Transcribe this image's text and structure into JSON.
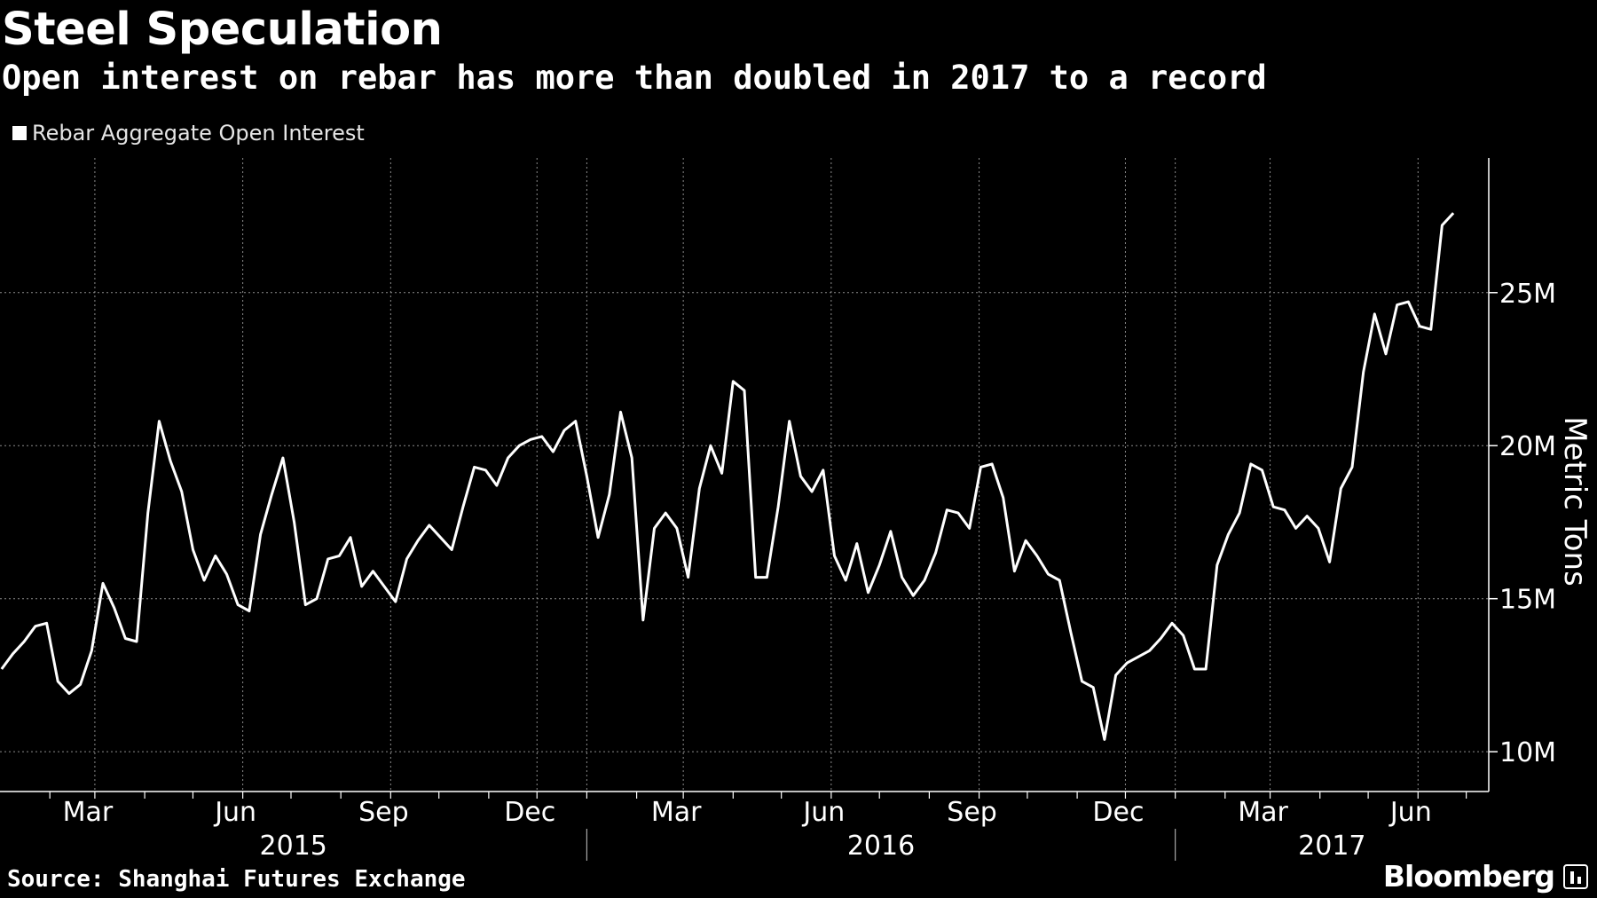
{
  "header": {
    "title": "Steel Speculation",
    "subtitle": "Open interest on rebar has more than doubled in 2017 to a record"
  },
  "legend": {
    "label": "Rebar Aggregate Open Interest"
  },
  "footer": {
    "source": "Source: Shanghai Futures Exchange",
    "brand": "Bloomberg"
  },
  "colors": {
    "background": "#000000",
    "line": "#ffffff",
    "grid": "#8c8c8c",
    "text": "#ffffff"
  },
  "chart_data": {
    "type": "line",
    "title": "Steel Speculation",
    "subtitle": "Open interest on rebar has more than doubled in 2017 to a record",
    "ylabel": "Metric Tons",
    "xlabel": "",
    "ylim": [
      8.7,
      29.4
    ],
    "y_ticks": [
      {
        "value": 10,
        "label": "10M"
      },
      {
        "value": 15,
        "label": "15M"
      },
      {
        "value": 20,
        "label": "20M"
      },
      {
        "value": 25,
        "label": "25M"
      }
    ],
    "x_range": [
      "2015-01-01",
      "2017-07-15"
    ],
    "month_ticks": [
      {
        "date": "2015-03-01",
        "label": "Mar"
      },
      {
        "date": "2015-06-01",
        "label": "Jun"
      },
      {
        "date": "2015-09-01",
        "label": "Sep"
      },
      {
        "date": "2015-12-01",
        "label": "Dec"
      },
      {
        "date": "2016-03-01",
        "label": "Mar"
      },
      {
        "date": "2016-06-01",
        "label": "Jun"
      },
      {
        "date": "2016-09-01",
        "label": "Sep"
      },
      {
        "date": "2016-12-01",
        "label": "Dec"
      },
      {
        "date": "2017-03-01",
        "label": "Mar"
      },
      {
        "date": "2017-06-01",
        "label": "Jun"
      }
    ],
    "year_labels": [
      {
        "label": "2015",
        "start": "2015-01-01",
        "end": "2016-01-01"
      },
      {
        "label": "2016",
        "start": "2016-01-01",
        "end": "2017-01-01"
      },
      {
        "label": "2017",
        "start": "2017-01-01",
        "end": "2017-07-15"
      }
    ],
    "grid": true,
    "legend_position": "top-left",
    "series": [
      {
        "name": "Rebar Aggregate Open Interest",
        "points": [
          [
            "2015-01-02",
            12.7
          ],
          [
            "2015-01-09",
            13.2
          ],
          [
            "2015-01-16",
            13.6
          ],
          [
            "2015-01-23",
            14.1
          ],
          [
            "2015-01-30",
            14.2
          ],
          [
            "2015-02-06",
            12.3
          ],
          [
            "2015-02-13",
            11.9
          ],
          [
            "2015-02-20",
            12.2
          ],
          [
            "2015-02-27",
            13.3
          ],
          [
            "2015-03-06",
            15.5
          ],
          [
            "2015-03-13",
            14.7
          ],
          [
            "2015-03-20",
            13.7
          ],
          [
            "2015-03-27",
            13.6
          ],
          [
            "2015-04-03",
            17.8
          ],
          [
            "2015-04-10",
            20.8
          ],
          [
            "2015-04-17",
            19.5
          ],
          [
            "2015-04-24",
            18.5
          ],
          [
            "2015-05-01",
            16.6
          ],
          [
            "2015-05-08",
            15.6
          ],
          [
            "2015-05-15",
            16.4
          ],
          [
            "2015-05-22",
            15.8
          ],
          [
            "2015-05-29",
            14.8
          ],
          [
            "2015-06-05",
            14.6
          ],
          [
            "2015-06-12",
            17.1
          ],
          [
            "2015-06-19",
            18.4
          ],
          [
            "2015-06-26",
            19.6
          ],
          [
            "2015-07-03",
            17.5
          ],
          [
            "2015-07-10",
            14.8
          ],
          [
            "2015-07-17",
            15.0
          ],
          [
            "2015-07-24",
            16.3
          ],
          [
            "2015-07-31",
            16.4
          ],
          [
            "2015-08-07",
            17.0
          ],
          [
            "2015-08-14",
            15.4
          ],
          [
            "2015-08-21",
            15.9
          ],
          [
            "2015-08-28",
            15.4
          ],
          [
            "2015-09-04",
            14.9
          ],
          [
            "2015-09-11",
            16.3
          ],
          [
            "2015-09-18",
            16.9
          ],
          [
            "2015-09-25",
            17.4
          ],
          [
            "2015-10-02",
            17.0
          ],
          [
            "2015-10-09",
            16.6
          ],
          [
            "2015-10-16",
            18.0
          ],
          [
            "2015-10-23",
            19.3
          ],
          [
            "2015-10-30",
            19.2
          ],
          [
            "2015-11-06",
            18.7
          ],
          [
            "2015-11-13",
            19.6
          ],
          [
            "2015-11-20",
            20.0
          ],
          [
            "2015-11-27",
            20.2
          ],
          [
            "2015-12-04",
            20.3
          ],
          [
            "2015-12-11",
            19.8
          ],
          [
            "2015-12-18",
            20.5
          ],
          [
            "2015-12-25",
            20.8
          ],
          [
            "2016-01-01",
            19.0
          ],
          [
            "2016-01-08",
            17.0
          ],
          [
            "2016-01-15",
            18.4
          ],
          [
            "2016-01-22",
            21.1
          ],
          [
            "2016-01-29",
            19.6
          ],
          [
            "2016-02-05",
            14.3
          ],
          [
            "2016-02-12",
            17.3
          ],
          [
            "2016-02-19",
            17.8
          ],
          [
            "2016-02-26",
            17.3
          ],
          [
            "2016-03-04",
            15.7
          ],
          [
            "2016-03-11",
            18.6
          ],
          [
            "2016-03-18",
            20.0
          ],
          [
            "2016-03-25",
            19.1
          ],
          [
            "2016-04-01",
            22.1
          ],
          [
            "2016-04-08",
            21.8
          ],
          [
            "2016-04-15",
            15.7
          ],
          [
            "2016-04-22",
            15.7
          ],
          [
            "2016-04-29",
            18.0
          ],
          [
            "2016-05-06",
            20.8
          ],
          [
            "2016-05-13",
            19.0
          ],
          [
            "2016-05-20",
            18.5
          ],
          [
            "2016-05-27",
            19.2
          ],
          [
            "2016-06-03",
            16.4
          ],
          [
            "2016-06-10",
            15.6
          ],
          [
            "2016-06-17",
            16.8
          ],
          [
            "2016-06-24",
            15.2
          ],
          [
            "2016-07-01",
            16.1
          ],
          [
            "2016-07-08",
            17.2
          ],
          [
            "2016-07-15",
            15.7
          ],
          [
            "2016-07-22",
            15.1
          ],
          [
            "2016-07-29",
            15.6
          ],
          [
            "2016-08-05",
            16.5
          ],
          [
            "2016-08-12",
            17.9
          ],
          [
            "2016-08-19",
            17.8
          ],
          [
            "2016-08-26",
            17.3
          ],
          [
            "2016-09-02",
            19.3
          ],
          [
            "2016-09-09",
            19.4
          ],
          [
            "2016-09-16",
            18.3
          ],
          [
            "2016-09-23",
            15.9
          ],
          [
            "2016-09-30",
            16.9
          ],
          [
            "2016-10-07",
            16.4
          ],
          [
            "2016-10-14",
            15.8
          ],
          [
            "2016-10-21",
            15.6
          ],
          [
            "2016-10-28",
            13.9
          ],
          [
            "2016-11-04",
            12.3
          ],
          [
            "2016-11-11",
            12.1
          ],
          [
            "2016-11-18",
            10.4
          ],
          [
            "2016-11-25",
            12.5
          ],
          [
            "2016-12-02",
            12.9
          ],
          [
            "2016-12-09",
            13.1
          ],
          [
            "2016-12-16",
            13.3
          ],
          [
            "2016-12-23",
            13.7
          ],
          [
            "2016-12-30",
            14.2
          ],
          [
            "2017-01-06",
            13.8
          ],
          [
            "2017-01-13",
            12.7
          ],
          [
            "2017-01-20",
            12.7
          ],
          [
            "2017-01-27",
            16.1
          ],
          [
            "2017-02-03",
            17.1
          ],
          [
            "2017-02-10",
            17.8
          ],
          [
            "2017-02-17",
            19.4
          ],
          [
            "2017-02-24",
            19.2
          ],
          [
            "2017-03-03",
            18.0
          ],
          [
            "2017-03-10",
            17.9
          ],
          [
            "2017-03-17",
            17.3
          ],
          [
            "2017-03-24",
            17.7
          ],
          [
            "2017-03-31",
            17.3
          ],
          [
            "2017-04-07",
            16.2
          ],
          [
            "2017-04-14",
            18.6
          ],
          [
            "2017-04-21",
            19.3
          ],
          [
            "2017-04-28",
            22.4
          ],
          [
            "2017-05-05",
            24.3
          ],
          [
            "2017-05-12",
            23.0
          ],
          [
            "2017-05-19",
            24.6
          ],
          [
            "2017-05-26",
            24.7
          ],
          [
            "2017-06-02",
            23.9
          ],
          [
            "2017-06-09",
            23.8
          ],
          [
            "2017-06-16",
            27.2
          ],
          [
            "2017-06-23",
            27.6
          ]
        ]
      }
    ]
  }
}
